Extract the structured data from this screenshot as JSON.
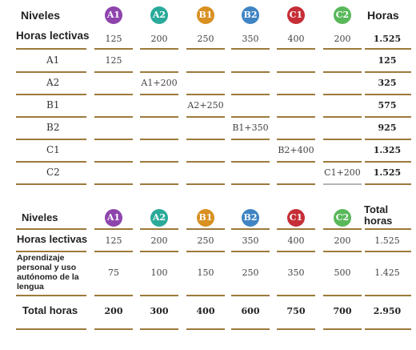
{
  "colors": {
    "A1": "#8e44ad",
    "A2": "#2aaa9a",
    "B1": "#d89020",
    "B2": "#3f84c4",
    "C1": "#c62e37",
    "C2": "#58b85a",
    "rule": "#9c7a3c"
  },
  "table1": {
    "niveles": "Niveles",
    "horas": "Horas",
    "levels": [
      "A1",
      "A2",
      "B1",
      "B2",
      "C1",
      "C2"
    ],
    "lectivas_label": "Horas lectivas",
    "lectivas": [
      "125",
      "200",
      "250",
      "350",
      "400",
      "200"
    ],
    "lectivas_total": "1.525",
    "rows": [
      {
        "label": "A1",
        "cell": "125",
        "total": "125"
      },
      {
        "label": "A2",
        "cell": "A1+200",
        "total": "325"
      },
      {
        "label": "B1",
        "cell": "A2+250",
        "total": "575"
      },
      {
        "label": "B2",
        "cell": "B1+350",
        "total": "925"
      },
      {
        "label": "C1",
        "cell": "B2+400",
        "total": "1.325"
      },
      {
        "label": "C2",
        "cell": "C1+200",
        "total": "1.525"
      }
    ]
  },
  "table2": {
    "niveles": "Niveles",
    "total_horas_header_1": "Total",
    "total_horas_header_2": "horas",
    "levels": [
      "A1",
      "A2",
      "B1",
      "B2",
      "C1",
      "C2"
    ],
    "lectivas_label": "Horas lectivas",
    "lectivas": [
      "125",
      "200",
      "250",
      "350",
      "400",
      "200"
    ],
    "lectivas_total": "1.525",
    "aprendizaje_label_1": "Aprendizaje",
    "aprendizaje_label_2": "personal y uso",
    "aprendizaje_label_3": "autónomo de la",
    "aprendizaje_label_4": "lengua",
    "aprendizaje": [
      "75",
      "100",
      "150",
      "250",
      "350",
      "500"
    ],
    "aprendizaje_total": "1.425",
    "total_label": "Total horas",
    "totals": [
      "200",
      "300",
      "400",
      "600",
      "750",
      "700"
    ],
    "grand_total": "2.950"
  }
}
